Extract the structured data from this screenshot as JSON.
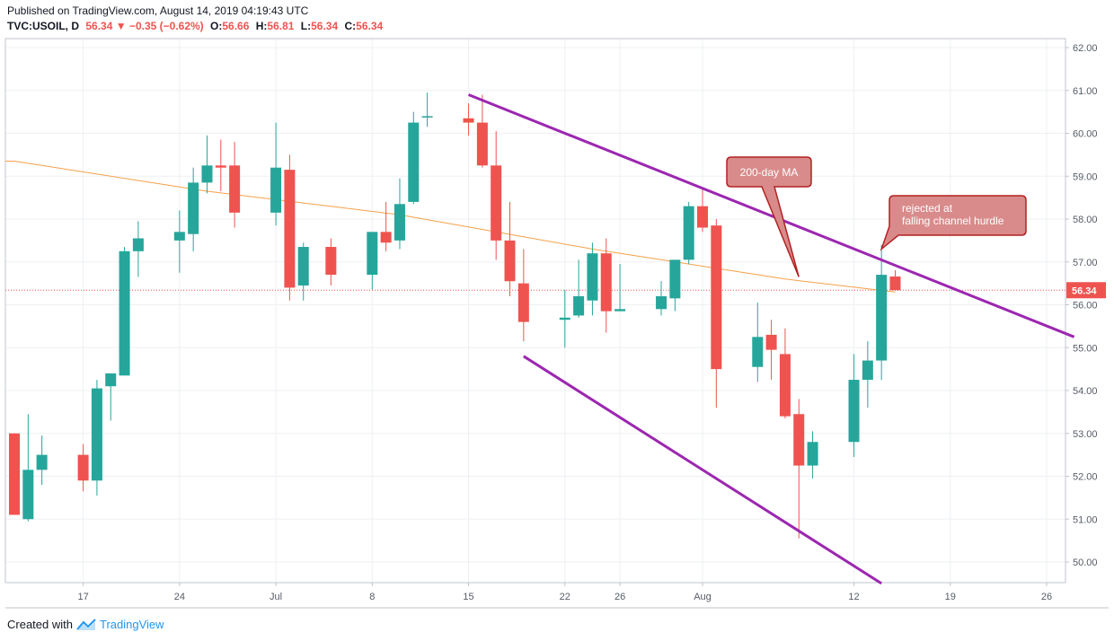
{
  "header": {
    "published": "Published on TradingView.com, August 14, 2019 04:19:43 UTC",
    "symbol": "TVC:USOIL, D",
    "last": "56.34",
    "change": "−0.35 (−0.62%)",
    "o_label": "O:",
    "o_value": "56.66",
    "h_label": "H:",
    "h_value": "56.81",
    "l_label": "L:",
    "l_value": "56.34",
    "c_label": "C:",
    "c_value": "56.34"
  },
  "footer": {
    "created_with": "Created with",
    "brand": "TradingView"
  },
  "colors": {
    "up": "#26a69a",
    "down": "#ef5350",
    "ma": "#f5a04a",
    "channel": "#9c27b0",
    "callout_fill": "#d98b8b",
    "callout_stroke": "#b22222",
    "price_tag": "#ef5350"
  },
  "chart_data": {
    "type": "candlestick",
    "symbol": "TVC:USOIL",
    "interval": "D",
    "ylim": [
      49.5,
      62.2
    ],
    "yticks": [
      "62.00",
      "61.00",
      "60.00",
      "59.00",
      "58.00",
      "57.00",
      "56.00",
      "55.00",
      "54.00",
      "53.00",
      "52.00",
      "51.00",
      "50.00"
    ],
    "xlabels": [
      {
        "label": "17",
        "date": "2019-06-17"
      },
      {
        "label": "24",
        "date": "2019-06-24"
      },
      {
        "label": "Jul",
        "date": "2019-07-01"
      },
      {
        "label": "8",
        "date": "2019-07-08"
      },
      {
        "label": "15",
        "date": "2019-07-15"
      },
      {
        "label": "22",
        "date": "2019-07-22"
      },
      {
        "label": "26",
        "date": "2019-07-26"
      },
      {
        "label": "Aug",
        "date": "2019-08-01"
      },
      {
        "label": "12",
        "date": "2019-08-12"
      },
      {
        "label": "19",
        "date": "2019-08-19"
      },
      {
        "label": "26",
        "date": "2019-08-26"
      }
    ],
    "candles": [
      {
        "date": "2019-06-12",
        "o": 53.0,
        "h": 53.0,
        "l": 51.1,
        "c": 51.1
      },
      {
        "date": "2019-06-13",
        "o": 51.0,
        "h": 53.45,
        "l": 50.95,
        "c": 52.15
      },
      {
        "date": "2019-06-14",
        "o": 52.15,
        "h": 52.95,
        "l": 51.8,
        "c": 52.5
      },
      {
        "date": "2019-06-17",
        "o": 52.5,
        "h": 52.75,
        "l": 51.65,
        "c": 51.9
      },
      {
        "date": "2019-06-18",
        "o": 51.9,
        "h": 54.25,
        "l": 51.55,
        "c": 54.05
      },
      {
        "date": "2019-06-19",
        "o": 54.1,
        "h": 54.4,
        "l": 53.3,
        "c": 54.4
      },
      {
        "date": "2019-06-20",
        "o": 54.35,
        "h": 57.35,
        "l": 54.35,
        "c": 57.25
      },
      {
        "date": "2019-06-21",
        "o": 57.25,
        "h": 57.95,
        "l": 56.65,
        "c": 57.55
      },
      {
        "date": "2019-06-24",
        "o": 57.5,
        "h": 58.2,
        "l": 56.75,
        "c": 57.7
      },
      {
        "date": "2019-06-25",
        "o": 57.65,
        "h": 59.2,
        "l": 57.25,
        "c": 58.85
      },
      {
        "date": "2019-06-26",
        "o": 58.85,
        "h": 59.95,
        "l": 58.6,
        "c": 59.25
      },
      {
        "date": "2019-06-27",
        "o": 59.25,
        "h": 59.85,
        "l": 58.65,
        "c": 59.2
      },
      {
        "date": "2019-06-28",
        "o": 59.25,
        "h": 59.8,
        "l": 57.8,
        "c": 58.15
      },
      {
        "date": "2019-07-01",
        "o": 58.15,
        "h": 60.25,
        "l": 57.85,
        "c": 59.2
      },
      {
        "date": "2019-07-02",
        "o": 59.15,
        "h": 59.5,
        "l": 56.1,
        "c": 56.4
      },
      {
        "date": "2019-07-03",
        "o": 56.45,
        "h": 57.45,
        "l": 56.1,
        "c": 57.35
      },
      {
        "date": "2019-07-05",
        "o": 57.35,
        "h": 57.55,
        "l": 56.45,
        "c": 56.7
      },
      {
        "date": "2019-07-08",
        "o": 56.7,
        "h": 57.7,
        "l": 56.35,
        "c": 57.7
      },
      {
        "date": "2019-07-09",
        "o": 57.7,
        "h": 58.4,
        "l": 57.25,
        "c": 57.45
      },
      {
        "date": "2019-07-10",
        "o": 57.5,
        "h": 58.95,
        "l": 57.3,
        "c": 58.35
      },
      {
        "date": "2019-07-11",
        "o": 58.4,
        "h": 60.5,
        "l": 58.35,
        "c": 60.25
      },
      {
        "date": "2019-07-12",
        "o": 60.4,
        "h": 60.95,
        "l": 60.15,
        "c": 60.4
      },
      {
        "date": "2019-07-15",
        "o": 60.35,
        "h": 60.7,
        "l": 59.95,
        "c": 60.25
      },
      {
        "date": "2019-07-16",
        "o": 60.25,
        "h": 60.9,
        "l": 59.2,
        "c": 59.25
      },
      {
        "date": "2019-07-17",
        "o": 59.25,
        "h": 60.05,
        "l": 57.05,
        "c": 57.5
      },
      {
        "date": "2019-07-18",
        "o": 57.5,
        "h": 58.4,
        "l": 56.2,
        "c": 56.55
      },
      {
        "date": "2019-07-19",
        "o": 56.5,
        "h": 57.3,
        "l": 55.15,
        "c": 55.6
      },
      {
        "date": "2019-07-22",
        "o": 55.65,
        "h": 56.35,
        "l": 55.0,
        "c": 55.7
      },
      {
        "date": "2019-07-23",
        "o": 55.75,
        "h": 57.05,
        "l": 55.7,
        "c": 56.2
      },
      {
        "date": "2019-07-24",
        "o": 56.1,
        "h": 57.45,
        "l": 55.75,
        "c": 57.2
      },
      {
        "date": "2019-07-25",
        "o": 57.2,
        "h": 57.55,
        "l": 55.35,
        "c": 55.85
      },
      {
        "date": "2019-07-26",
        "o": 55.85,
        "h": 56.95,
        "l": 55.85,
        "c": 55.9
      },
      {
        "date": "2019-07-29",
        "o": 55.9,
        "h": 56.55,
        "l": 55.75,
        "c": 56.2
      },
      {
        "date": "2019-07-30",
        "o": 56.15,
        "h": 57.05,
        "l": 55.85,
        "c": 57.05
      },
      {
        "date": "2019-07-31",
        "o": 57.05,
        "h": 58.4,
        "l": 56.95,
        "c": 58.3
      },
      {
        "date": "2019-08-01",
        "o": 58.3,
        "h": 58.75,
        "l": 57.7,
        "c": 57.8
      },
      {
        "date": "2019-08-02",
        "o": 57.85,
        "h": 58.0,
        "l": 53.6,
        "c": 54.5
      },
      {
        "date": "2019-08-05",
        "o": 54.55,
        "h": 56.05,
        "l": 54.2,
        "c": 55.25
      },
      {
        "date": "2019-08-06",
        "o": 55.3,
        "h": 55.65,
        "l": 54.25,
        "c": 54.95
      },
      {
        "date": "2019-08-07",
        "o": 54.85,
        "h": 55.45,
        "l": 53.35,
        "c": 53.4
      },
      {
        "date": "2019-08-08",
        "o": 53.45,
        "h": 53.8,
        "l": 50.55,
        "c": 52.25
      },
      {
        "date": "2019-08-09",
        "o": 52.25,
        "h": 53.05,
        "l": 51.95,
        "c": 52.8
      },
      {
        "date": "2019-08-12",
        "o": 52.8,
        "h": 54.85,
        "l": 52.45,
        "c": 54.25
      },
      {
        "date": "2019-08-13",
        "o": 54.25,
        "h": 55.15,
        "l": 53.6,
        "c": 54.7
      },
      {
        "date": "2019-08-14",
        "o": 54.7,
        "h": 57.4,
        "l": 54.25,
        "c": 56.7
      },
      {
        "date": "2019-08-15",
        "o": 56.66,
        "h": 56.81,
        "l": 56.34,
        "c": 56.34
      }
    ],
    "ma200": [
      {
        "date": "2019-06-12",
        "v": 59.35
      },
      {
        "date": "2019-06-26",
        "v": 58.65
      },
      {
        "date": "2019-07-10",
        "v": 58.1
      },
      {
        "date": "2019-07-24",
        "v": 57.3
      },
      {
        "date": "2019-08-07",
        "v": 56.6
      },
      {
        "date": "2019-08-15",
        "v": 56.3
      }
    ],
    "channel_upper": [
      {
        "date": "2019-07-15",
        "v": 60.9
      },
      {
        "date": "2019-08-28",
        "v": 55.25
      }
    ],
    "channel_lower": [
      {
        "date": "2019-07-19",
        "v": 54.8
      },
      {
        "date": "2019-08-14",
        "v": 49.5
      }
    ],
    "annotations": [
      {
        "text": "200-day MA",
        "date": "2019-08-08",
        "v": 56.65
      },
      {
        "text_line1": "rejected at",
        "text_line2": "falling channel hurdle",
        "date": "2019-08-14",
        "v": 57.3
      }
    ],
    "last_price": "56.34"
  }
}
